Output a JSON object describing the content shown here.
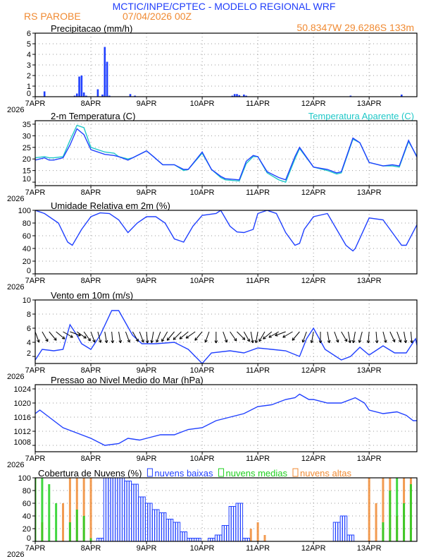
{
  "header": {
    "title": "MCTIC/INPE/CPTEC - MODELO REGIONAL WRF",
    "location": "RS PAROBE",
    "run": "07/04/2026 00Z",
    "coords": "50.8347W 29.6286S 133m"
  },
  "colors": {
    "title": "#1f3dfa",
    "orange": "#f08a32",
    "blue": "#2040ff",
    "cyan": "#20c8c8",
    "green": "#20d020"
  },
  "x_ticks": [
    "7APR",
    "8APR",
    "9APR",
    "10APR",
    "11APR",
    "12APR",
    "13APR"
  ],
  "x_year": "2026",
  "chart_data": [
    {
      "type": "bar",
      "title": "Precipitacao (mm/h)",
      "ylim": [
        0,
        6
      ],
      "yticks": [
        0,
        1,
        2,
        3,
        4,
        5,
        6
      ],
      "x_unit": "hours since 07APR 00Z",
      "x": [
        4,
        17,
        18,
        19,
        20,
        21,
        22,
        27,
        29,
        30,
        31,
        32,
        41,
        43,
        85,
        86,
        87,
        88,
        90,
        91,
        136,
        158
      ],
      "values": [
        0.5,
        0.1,
        0.3,
        1.9,
        2.0,
        0.4,
        0.1,
        0.7,
        0.2,
        4.7,
        3.3,
        0.1,
        0.25,
        0.1,
        0.1,
        0.25,
        0.25,
        0.15,
        0.2,
        0.1,
        0.1,
        0.2
      ]
    },
    {
      "type": "line",
      "title": "2-m Temperatura (C)",
      "ylim": [
        8.5,
        36.5
      ],
      "yticks": [
        10,
        15,
        20,
        25,
        30,
        35
      ],
      "series": [
        {
          "name": "Temperatura Aparente (C)",
          "color": "#20c8c8",
          "x": [
            0,
            4,
            6,
            8,
            12,
            15,
            18,
            21,
            24,
            30,
            34,
            36,
            40,
            42,
            48,
            51,
            55,
            60,
            64,
            66,
            72,
            76,
            80,
            82,
            88,
            91,
            94,
            96,
            100,
            105,
            108,
            112,
            114,
            120,
            126,
            130,
            132,
            137,
            140,
            144,
            150,
            154,
            157,
            161,
            165
          ],
          "y": [
            20.5,
            21,
            20.5,
            20.5,
            21,
            28,
            34.5,
            33.5,
            25,
            23,
            22.5,
            21,
            20,
            20.5,
            23.5,
            21,
            17.5,
            17.5,
            15,
            15.5,
            22.5,
            15.5,
            12,
            11,
            10.5,
            18,
            21,
            21,
            14,
            11,
            10,
            20,
            24.5,
            16.5,
            15,
            13.5,
            14,
            28.5,
            27,
            18.5,
            17,
            17,
            16.5,
            27.5,
            20.5
          ]
        },
        {
          "name": "Temperatura",
          "color": "#2040ff",
          "x": [
            0,
            4,
            6,
            8,
            12,
            15,
            18,
            21,
            24,
            30,
            34,
            36,
            40,
            42,
            48,
            51,
            55,
            60,
            64,
            66,
            72,
            76,
            80,
            82,
            88,
            91,
            94,
            96,
            100,
            105,
            108,
            112,
            114,
            120,
            126,
            130,
            132,
            137,
            140,
            144,
            150,
            154,
            157,
            161,
            165
          ],
          "y": [
            19.5,
            20.5,
            19.5,
            19.5,
            20.5,
            26,
            33,
            30.5,
            24,
            22,
            21.5,
            21,
            19.5,
            20.5,
            23.5,
            21,
            17.5,
            17.5,
            15.5,
            15.5,
            23,
            15.5,
            12.5,
            11.5,
            11,
            19,
            21.5,
            21,
            14.5,
            12,
            11,
            21,
            25,
            16.5,
            15.5,
            14,
            14.5,
            29,
            27,
            18.5,
            17,
            17.5,
            17,
            28,
            20
          ]
        }
      ],
      "legend": "top-right"
    },
    {
      "type": "line",
      "title": "Umidade Relativa em 2m (%)",
      "ylim": [
        0,
        100
      ],
      "yticks": [
        0,
        20,
        40,
        60,
        80,
        100
      ],
      "x": [
        0,
        4,
        10,
        14,
        16,
        20,
        24,
        28,
        32,
        36,
        40,
        44,
        48,
        52,
        56,
        60,
        64,
        68,
        72,
        78,
        80,
        84,
        87,
        90,
        94,
        96,
        100,
        104,
        108,
        112,
        114,
        116,
        120,
        126,
        130,
        134,
        137,
        138,
        144,
        150,
        152,
        158,
        160,
        165
      ],
      "y": [
        100,
        95,
        80,
        50,
        45,
        70,
        90,
        96,
        95,
        85,
        65,
        80,
        90,
        90,
        80,
        55,
        50,
        75,
        92,
        95,
        100,
        75,
        66,
        65,
        70,
        95,
        100,
        95,
        65,
        45,
        48,
        70,
        90,
        95,
        70,
        45,
        36,
        40,
        88,
        85,
        75,
        45,
        45,
        80
      ]
    },
    {
      "type": "line+vectors",
      "title": "Vento em 10m (m/s)",
      "ylim": [
        1,
        10
      ],
      "yticks": [
        2,
        4,
        6,
        8,
        10
      ],
      "x": [
        0,
        3,
        8,
        12,
        15,
        18,
        20,
        24,
        28,
        33,
        36,
        42,
        46,
        52,
        60,
        66,
        72,
        76,
        84,
        90,
        96,
        102,
        108,
        114,
        117,
        120,
        125,
        132,
        136,
        140,
        144,
        150,
        155,
        160,
        164,
        165
      ],
      "y": [
        1.5,
        3,
        2.8,
        3,
        6.5,
        5,
        3.8,
        3,
        5,
        8.5,
        8.5,
        5,
        3.8,
        3.8,
        4,
        3,
        1,
        2.5,
        2.8,
        2.5,
        3.2,
        3,
        2.8,
        2,
        4.5,
        6,
        3,
        1.5,
        2,
        3.3,
        2.2,
        3.5,
        2.5,
        2.5,
        4.5,
        3
      ],
      "vector_dir_deg": [
        200,
        210,
        220,
        230,
        240,
        250,
        235,
        215,
        200,
        195,
        190,
        185,
        190,
        200,
        210,
        200,
        185,
        170,
        160,
        150,
        140,
        135,
        130,
        125,
        140,
        160,
        180,
        200,
        215,
        225,
        210,
        190,
        170,
        150,
        130,
        120,
        110,
        120,
        140,
        160,
        170,
        180,
        190,
        200,
        210,
        190,
        170,
        165,
        175,
        185,
        195,
        205,
        200,
        190,
        185,
        180
      ]
    },
    {
      "type": "line",
      "title": "Pressao ao Nivel Medio do Mar (hPa)",
      "ylim": [
        1006.2,
        1025.2
      ],
      "yticks": [
        1008,
        1012,
        1016,
        1020,
        1024
      ],
      "x": [
        0,
        2,
        6,
        12,
        18,
        24,
        30,
        36,
        40,
        45,
        48,
        54,
        60,
        66,
        72,
        78,
        84,
        90,
        96,
        102,
        108,
        112,
        114,
        118,
        120,
        126,
        132,
        138,
        142,
        144,
        150,
        156,
        160,
        163,
        165
      ],
      "y": [
        1017,
        1018,
        1016,
        1013,
        1011.5,
        1010,
        1008,
        1008.5,
        1010,
        1009.5,
        1010,
        1011,
        1011,
        1012.5,
        1013,
        1015,
        1016,
        1017,
        1019,
        1019.5,
        1021,
        1021.5,
        1022.5,
        1021,
        1021,
        1020,
        1020,
        1021.5,
        1020,
        1018,
        1017,
        1017.5,
        1016.5,
        1015,
        1015
      ]
    },
    {
      "type": "bar",
      "title": "Cobertura de Nuvens (%)",
      "ylim": [
        0,
        100
      ],
      "yticks": [
        0,
        20,
        40,
        60,
        80,
        100
      ],
      "x_step_hours": 3,
      "series": [
        {
          "name": "nuvens baixas",
          "color": "#2040ff",
          "values": [
            0,
            0,
            0,
            0,
            0,
            0,
            0,
            0,
            0,
            5,
            100,
            100,
            100,
            95,
            90,
            70,
            60,
            50,
            45,
            35,
            30,
            15,
            5,
            5,
            0,
            5,
            10,
            25,
            55,
            60,
            5,
            0,
            0,
            0,
            0,
            0,
            0,
            0,
            0,
            0,
            0,
            0,
            0,
            30,
            40,
            10,
            0,
            0,
            0,
            0,
            0,
            0,
            0,
            0,
            0,
            0
          ]
        },
        {
          "name": "nuvens medias",
          "color": "#20d020",
          "values": [
            100,
            100,
            90,
            60,
            0,
            30,
            50,
            40,
            5,
            0,
            0,
            0,
            0,
            0,
            0,
            0,
            0,
            0,
            0,
            0,
            0,
            0,
            0,
            0,
            0,
            0,
            0,
            0,
            0,
            0,
            0,
            0,
            0,
            0,
            0,
            0,
            0,
            0,
            0,
            0,
            0,
            0,
            0,
            0,
            0,
            0,
            0,
            0,
            0,
            0,
            30,
            80,
            100,
            60,
            90,
            100
          ]
        },
        {
          "name": "nuvens altas",
          "color": "#f08a32",
          "values": [
            100,
            30,
            0,
            0,
            60,
            100,
            100,
            100,
            100,
            0,
            0,
            0,
            0,
            0,
            0,
            0,
            0,
            0,
            0,
            0,
            0,
            0,
            0,
            0,
            0,
            0,
            0,
            0,
            0,
            0,
            0,
            20,
            30,
            10,
            0,
            0,
            0,
            0,
            0,
            0,
            0,
            0,
            0,
            0,
            0,
            0,
            0,
            0,
            100,
            60,
            100,
            100,
            40,
            100,
            100,
            100
          ]
        }
      ],
      "legend": "top"
    }
  ]
}
